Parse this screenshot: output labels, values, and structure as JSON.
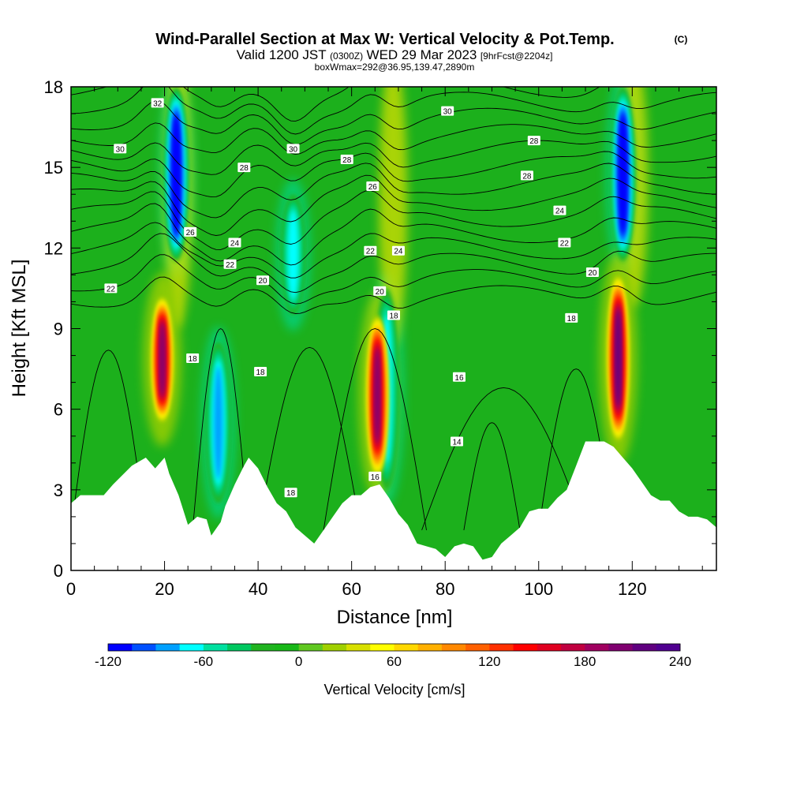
{
  "chart_data": {
    "type": "heatmap",
    "title": "Wind-Parallel Section at Max W: Vertical Velocity & Pot.Temp.",
    "title_mark": "(C)",
    "subtitle_prefix": "Valid 1200 JST",
    "subtitle_utc": "(0300Z)",
    "subtitle_date": "WED 29 Mar 2023",
    "subtitle_fcst": "[9hrFcst@2204z]",
    "subtitle2": "boxWmax=292@36.95,139.47,2890m",
    "xlabel": "Distance [nm]",
    "ylabel": "Height [Kft MSL]",
    "xlim": [
      0,
      138
    ],
    "ylim": [
      0,
      18
    ],
    "x_ticks": [
      0,
      20,
      40,
      60,
      80,
      100,
      120
    ],
    "y_ticks": [
      0,
      3,
      6,
      9,
      12,
      15,
      18
    ],
    "colorbar_label": "Vertical Velocity [cm/s]",
    "colorbar_ticks": [
      -120,
      -60,
      0,
      60,
      120,
      180,
      240
    ],
    "colorbar_levels": [
      -120,
      -105,
      -90,
      -75,
      -60,
      -45,
      -30,
      -15,
      0,
      15,
      30,
      45,
      60,
      75,
      90,
      105,
      120,
      135,
      150,
      165,
      180,
      195,
      210,
      225,
      240
    ],
    "colorbar_colors": [
      "#0000ff",
      "#0050ff",
      "#00a0ff",
      "#00ffff",
      "#00e0a0",
      "#00c860",
      "#20b420",
      "#18b818",
      "#60c820",
      "#a0d000",
      "#d8e000",
      "#ffff00",
      "#ffd800",
      "#ffb000",
      "#ff8800",
      "#ff6000",
      "#ff3000",
      "#ff0000",
      "#e00020",
      "#c00040",
      "#a00060",
      "#800070",
      "#600080",
      "#500090"
    ],
    "updrafts": [
      {
        "x": 19.5,
        "y_bottom": 5.5,
        "y_top": 10.2,
        "peak": 200
      },
      {
        "x": 65.5,
        "y_bottom": 3.5,
        "y_top": 9.5,
        "peak": 200
      },
      {
        "x": 117,
        "y_bottom": 4.8,
        "y_top": 11.0,
        "peak": 220
      }
    ],
    "downdrafts": [
      {
        "x": 22.5,
        "y_bottom": 11.5,
        "y_top": 18,
        "peak": -120
      },
      {
        "x": 31.5,
        "y_bottom": 2.5,
        "y_top": 8.5,
        "peak": -75
      },
      {
        "x": 47.5,
        "y_bottom": 9.5,
        "y_top": 14,
        "peak": -60
      },
      {
        "x": 67.5,
        "y_bottom": 3.0,
        "y_top": 10.5,
        "peak": -60
      },
      {
        "x": 118,
        "y_bottom": 11.5,
        "y_top": 18,
        "peak": -120
      }
    ],
    "terrain": [
      [
        0,
        2.5
      ],
      [
        2,
        2.8
      ],
      [
        7,
        2.8
      ],
      [
        9,
        3.2
      ],
      [
        13,
        3.9
      ],
      [
        16,
        4.2
      ],
      [
        18,
        3.8
      ],
      [
        20,
        4.2
      ],
      [
        21,
        3.6
      ],
      [
        23,
        2.8
      ],
      [
        25,
        1.7
      ],
      [
        27,
        2.0
      ],
      [
        29,
        1.9
      ],
      [
        30,
        1.3
      ],
      [
        32,
        1.8
      ],
      [
        33,
        2.4
      ],
      [
        35,
        3.2
      ],
      [
        37,
        3.9
      ],
      [
        38,
        4.2
      ],
      [
        40,
        3.8
      ],
      [
        42,
        3.1
      ],
      [
        44,
        2.5
      ],
      [
        46,
        2.2
      ],
      [
        48,
        1.6
      ],
      [
        50,
        1.3
      ],
      [
        52,
        1.0
      ],
      [
        54,
        1.5
      ],
      [
        56,
        2.0
      ],
      [
        58,
        2.5
      ],
      [
        60,
        2.8
      ],
      [
        62,
        2.8
      ],
      [
        64,
        3.1
      ],
      [
        66,
        3.2
      ],
      [
        68,
        2.7
      ],
      [
        70,
        2.1
      ],
      [
        72,
        1.7
      ],
      [
        74,
        1.0
      ],
      [
        76,
        0.9
      ],
      [
        78,
        0.8
      ],
      [
        80,
        0.5
      ],
      [
        82,
        0.9
      ],
      [
        84,
        1.0
      ],
      [
        86,
        0.9
      ],
      [
        88,
        0.4
      ],
      [
        90,
        0.5
      ],
      [
        92,
        1.0
      ],
      [
        94,
        1.3
      ],
      [
        96,
        1.6
      ],
      [
        98,
        2.2
      ],
      [
        100,
        2.3
      ],
      [
        102,
        2.3
      ],
      [
        104,
        2.7
      ],
      [
        106,
        3.0
      ],
      [
        108,
        3.9
      ],
      [
        110,
        4.8
      ],
      [
        112,
        4.8
      ],
      [
        114,
        4.8
      ],
      [
        116,
        4.6
      ],
      [
        118,
        4.2
      ],
      [
        120,
        3.8
      ],
      [
        122,
        3.3
      ],
      [
        124,
        2.8
      ],
      [
        126,
        2.6
      ],
      [
        128,
        2.6
      ],
      [
        130,
        2.2
      ],
      [
        132,
        2.0
      ],
      [
        134,
        2.0
      ],
      [
        136,
        1.9
      ],
      [
        138,
        1.6
      ]
    ],
    "theta_labels": [
      {
        "value": "32",
        "x": 18.5,
        "y": 17.4
      },
      {
        "value": "30",
        "x": 10.5,
        "y": 15.7
      },
      {
        "value": "30",
        "x": 47.5,
        "y": 15.7
      },
      {
        "value": "30",
        "x": 80.5,
        "y": 17.1
      },
      {
        "value": "28",
        "x": 37,
        "y": 15.0
      },
      {
        "value": "28",
        "x": 59,
        "y": 15.3
      },
      {
        "value": "28",
        "x": 99,
        "y": 16.0
      },
      {
        "value": "28",
        "x": 97.5,
        "y": 14.7
      },
      {
        "value": "26",
        "x": 25.5,
        "y": 12.6
      },
      {
        "value": "26",
        "x": 64.5,
        "y": 14.3
      },
      {
        "value": "24",
        "x": 35,
        "y": 12.2
      },
      {
        "value": "24",
        "x": 70,
        "y": 11.9
      },
      {
        "value": "24",
        "x": 104.5,
        "y": 13.4
      },
      {
        "value": "22",
        "x": 8.5,
        "y": 10.5
      },
      {
        "value": "22",
        "x": 34,
        "y": 11.4
      },
      {
        "value": "22",
        "x": 64,
        "y": 11.9
      },
      {
        "value": "22",
        "x": 105.5,
        "y": 12.2
      },
      {
        "value": "20",
        "x": 41,
        "y": 10.8
      },
      {
        "value": "20",
        "x": 66,
        "y": 10.4
      },
      {
        "value": "20",
        "x": 111.5,
        "y": 11.1
      },
      {
        "value": "18",
        "x": 69,
        "y": 9.5
      },
      {
        "value": "18",
        "x": 107,
        "y": 9.4
      },
      {
        "value": "18",
        "x": 26,
        "y": 7.9
      },
      {
        "value": "18",
        "x": 40.5,
        "y": 7.4
      },
      {
        "value": "18",
        "x": 47,
        "y": 2.9
      },
      {
        "value": "16",
        "x": 83,
        "y": 7.2
      },
      {
        "value": "16",
        "x": 65,
        "y": 3.5
      },
      {
        "value": "14",
        "x": 82.5,
        "y": 4.8
      }
    ]
  }
}
